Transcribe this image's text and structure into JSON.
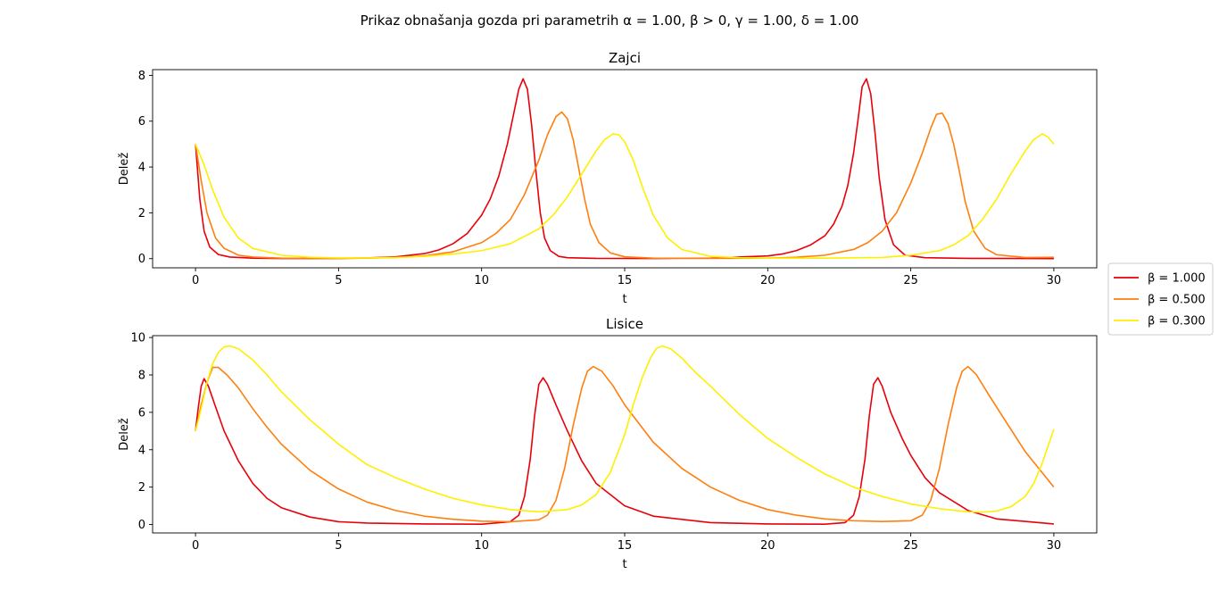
{
  "figure": {
    "suptitle": "Prikaz obnašanja gozda pri parametrih α = 1.00, β > 0, γ = 1.00, δ = 1.00"
  },
  "legend": {
    "placement": "right",
    "entries": [
      {
        "label": "β = 1.000",
        "color": "#e8000b"
      },
      {
        "label": "β = 0.500",
        "color": "#ff7f0e"
      },
      {
        "label": "β = 0.300",
        "color": "#ffef00"
      }
    ]
  },
  "chart_data": [
    {
      "type": "line",
      "title": "Zajci",
      "xlabel": "t",
      "ylabel": "Delež",
      "xlim": [
        -1.5,
        31.5
      ],
      "ylim": [
        -0.4,
        8.25
      ],
      "xticks": [
        0,
        5,
        10,
        15,
        20,
        25,
        30
      ],
      "yticks": [
        0,
        2,
        4,
        6,
        8
      ],
      "grid": false,
      "series": [
        {
          "name": "β = 1.000",
          "color": "#e8000b",
          "x": [
            0,
            0.15,
            0.3,
            0.5,
            0.8,
            1.2,
            2,
            3,
            4,
            5,
            6,
            7,
            8,
            8.5,
            9,
            9.5,
            10,
            10.3,
            10.6,
            10.9,
            11.1,
            11.3,
            11.45,
            11.6,
            11.75,
            11.9,
            12.05,
            12.2,
            12.4,
            12.7,
            13,
            14,
            16,
            18,
            20,
            20.5,
            21,
            21.5,
            22,
            22.3,
            22.6,
            22.8,
            23,
            23.15,
            23.3,
            23.45,
            23.6,
            23.75,
            23.9,
            24.1,
            24.4,
            24.8,
            25.5,
            27,
            30
          ],
          "y": [
            5.0,
            2.6,
            1.2,
            0.5,
            0.18,
            0.07,
            0.02,
            0.008,
            0.006,
            0.012,
            0.03,
            0.08,
            0.22,
            0.38,
            0.65,
            1.1,
            1.9,
            2.6,
            3.6,
            5.0,
            6.2,
            7.4,
            7.85,
            7.4,
            5.8,
            3.8,
            2.0,
            0.9,
            0.35,
            0.1,
            0.04,
            0.01,
            0.008,
            0.02,
            0.12,
            0.2,
            0.35,
            0.6,
            1.0,
            1.5,
            2.3,
            3.2,
            4.6,
            6.0,
            7.5,
            7.85,
            7.2,
            5.5,
            3.5,
            1.7,
            0.6,
            0.15,
            0.04,
            0.01,
            0.003
          ]
        },
        {
          "name": "β = 0.500",
          "color": "#ff7f0e",
          "x": [
            0,
            0.2,
            0.4,
            0.7,
            1,
            1.5,
            2,
            3,
            4,
            5,
            6,
            7,
            8,
            9,
            10,
            10.5,
            11,
            11.5,
            12,
            12.3,
            12.6,
            12.8,
            13,
            13.2,
            13.4,
            13.6,
            13.8,
            14.1,
            14.5,
            15,
            16,
            18,
            20,
            21,
            22,
            23,
            23.5,
            24,
            24.5,
            25,
            25.4,
            25.7,
            25.9,
            26.1,
            26.3,
            26.5,
            26.7,
            26.9,
            27.2,
            27.6,
            28,
            29,
            30
          ],
          "y": [
            5.0,
            3.4,
            2.0,
            0.9,
            0.45,
            0.15,
            0.07,
            0.02,
            0.01,
            0.01,
            0.02,
            0.05,
            0.12,
            0.3,
            0.7,
            1.1,
            1.7,
            2.8,
            4.3,
            5.4,
            6.2,
            6.4,
            6.1,
            5.2,
            3.9,
            2.6,
            1.5,
            0.7,
            0.25,
            0.08,
            0.02,
            0.01,
            0.02,
            0.06,
            0.15,
            0.4,
            0.7,
            1.2,
            2.0,
            3.3,
            4.6,
            5.7,
            6.3,
            6.35,
            5.9,
            5.0,
            3.8,
            2.5,
            1.2,
            0.45,
            0.17,
            0.05,
            0.06
          ]
        },
        {
          "name": "β = 0.300",
          "color": "#ffef00",
          "x": [
            0,
            0.3,
            0.6,
            1,
            1.5,
            2,
            3,
            4,
            5,
            6,
            7,
            8,
            9,
            10,
            11,
            12,
            12.5,
            13,
            13.5,
            14,
            14.3,
            14.6,
            14.8,
            15,
            15.3,
            15.6,
            16,
            16.5,
            17,
            18,
            19,
            20,
            22,
            24,
            25,
            26,
            26.5,
            27,
            27.5,
            28,
            28.5,
            29,
            29.3,
            29.6,
            29.8,
            30
          ],
          "y": [
            5.0,
            4.1,
            3.0,
            1.8,
            0.9,
            0.45,
            0.15,
            0.06,
            0.03,
            0.03,
            0.05,
            0.1,
            0.2,
            0.35,
            0.65,
            1.3,
            1.9,
            2.7,
            3.7,
            4.7,
            5.2,
            5.45,
            5.4,
            5.1,
            4.3,
            3.2,
            1.9,
            0.9,
            0.4,
            0.1,
            0.04,
            0.02,
            0.02,
            0.05,
            0.15,
            0.35,
            0.6,
            1.0,
            1.7,
            2.6,
            3.7,
            4.7,
            5.2,
            5.45,
            5.3,
            5.0
          ]
        }
      ]
    },
    {
      "type": "line",
      "title": "Lisice",
      "xlabel": "t",
      "ylabel": "Delež",
      "xlim": [
        -1.5,
        31.5
      ],
      "ylim": [
        -0.45,
        10.1
      ],
      "xticks": [
        0,
        5,
        10,
        15,
        20,
        25,
        30
      ],
      "yticks": [
        0,
        2,
        4,
        6,
        8,
        10
      ],
      "grid": false,
      "series": [
        {
          "name": "β = 1.000",
          "color": "#e8000b",
          "x": [
            0,
            0.1,
            0.2,
            0.3,
            0.45,
            0.7,
            1,
            1.5,
            2,
            2.5,
            3,
            4,
            5,
            6,
            8,
            10,
            11,
            11.3,
            11.5,
            11.7,
            11.85,
            12,
            12.15,
            12.3,
            12.6,
            13,
            13.5,
            14,
            15,
            16,
            18,
            20,
            22,
            22.7,
            23,
            23.2,
            23.4,
            23.55,
            23.7,
            23.85,
            24,
            24.3,
            24.7,
            25,
            25.5,
            26,
            27,
            28,
            30
          ],
          "y": [
            5.0,
            6.3,
            7.4,
            7.8,
            7.4,
            6.3,
            5.0,
            3.4,
            2.2,
            1.4,
            0.9,
            0.4,
            0.15,
            0.08,
            0.03,
            0.02,
            0.15,
            0.5,
            1.5,
            3.5,
            5.8,
            7.5,
            7.85,
            7.5,
            6.4,
            5.0,
            3.4,
            2.2,
            1.0,
            0.45,
            0.1,
            0.03,
            0.02,
            0.1,
            0.5,
            1.5,
            3.5,
            5.8,
            7.5,
            7.85,
            7.4,
            6.0,
            4.6,
            3.7,
            2.5,
            1.7,
            0.75,
            0.3,
            0.03
          ]
        },
        {
          "name": "β = 0.500",
          "color": "#ff7f0e",
          "x": [
            0,
            0.2,
            0.4,
            0.6,
            0.8,
            1.1,
            1.5,
            2,
            2.5,
            3,
            4,
            5,
            6,
            7,
            8,
            9,
            10,
            11,
            12,
            12.3,
            12.6,
            12.9,
            13.2,
            13.5,
            13.7,
            13.9,
            14.2,
            14.6,
            15,
            16,
            17,
            18,
            19,
            20,
            21,
            22,
            23,
            24,
            25,
            25.4,
            25.7,
            26,
            26.3,
            26.6,
            26.8,
            27,
            27.3,
            27.7,
            28.2,
            29,
            30
          ],
          "y": [
            5.0,
            6.4,
            7.6,
            8.4,
            8.4,
            8.0,
            7.3,
            6.2,
            5.2,
            4.3,
            2.9,
            1.9,
            1.2,
            0.75,
            0.45,
            0.28,
            0.18,
            0.15,
            0.25,
            0.5,
            1.3,
            3.0,
            5.3,
            7.3,
            8.2,
            8.45,
            8.2,
            7.4,
            6.4,
            4.4,
            3.0,
            2.0,
            1.3,
            0.8,
            0.5,
            0.3,
            0.2,
            0.16,
            0.2,
            0.5,
            1.3,
            3.0,
            5.3,
            7.3,
            8.2,
            8.45,
            8.0,
            7.0,
            5.8,
            3.9,
            2.0
          ]
        },
        {
          "name": "β = 0.300",
          "color": "#ffef00",
          "x": [
            0,
            0.2,
            0.4,
            0.6,
            0.8,
            1,
            1.2,
            1.5,
            2,
            2.5,
            3,
            4,
            5,
            6,
            7,
            8,
            9,
            10,
            11,
            12,
            13,
            13.5,
            14,
            14.5,
            15,
            15.3,
            15.6,
            15.9,
            16.1,
            16.3,
            16.6,
            17,
            17.5,
            18,
            19,
            20,
            21,
            22,
            23,
            24,
            25,
            26,
            27,
            27.5,
            28,
            28.5,
            29,
            29.3,
            29.6,
            29.8,
            30
          ],
          "y": [
            5.0,
            6.2,
            7.6,
            8.6,
            9.2,
            9.5,
            9.55,
            9.4,
            8.8,
            8.0,
            7.1,
            5.6,
            4.3,
            3.2,
            2.5,
            1.9,
            1.4,
            1.05,
            0.8,
            0.68,
            0.8,
            1.05,
            1.6,
            2.8,
            4.8,
            6.4,
            7.8,
            8.9,
            9.4,
            9.55,
            9.4,
            8.9,
            8.1,
            7.4,
            5.9,
            4.6,
            3.6,
            2.7,
            2.0,
            1.5,
            1.1,
            0.85,
            0.68,
            0.66,
            0.72,
            0.95,
            1.5,
            2.2,
            3.3,
            4.2,
            5.1
          ]
        }
      ]
    }
  ]
}
